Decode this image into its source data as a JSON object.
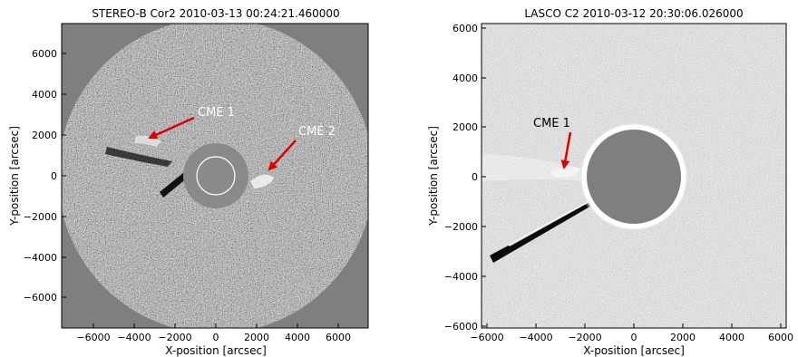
{
  "left_panel": {
    "title": "STEREO-B Cor2 2010-03-13 00:24:21.460000",
    "xlabel": "X-position [arcsec]",
    "ylabel": "Y-position [arcsec]",
    "xticks": [
      "−6000",
      "−4000",
      "−2000",
      "0",
      "2000",
      "4000",
      "6000"
    ],
    "yticks": [
      "6000",
      "4000",
      "2000",
      "0",
      "−2000",
      "−4000",
      "−6000"
    ],
    "annotations": [
      {
        "label": "CME 1",
        "color": "#ffffff",
        "arrow_color": "#dd0000"
      },
      {
        "label": "CME 2",
        "color": "#ffffff",
        "arrow_color": "#dd0000"
      }
    ]
  },
  "right_panel": {
    "title": "LASCO C2 2010-03-12 20:30:06.026000",
    "xlabel": "X-position [arcsec]",
    "ylabel": "Y-position [arcsec]",
    "xticks": [
      "−6000",
      "−4000",
      "−2000",
      "0",
      "2000",
      "4000",
      "6000"
    ],
    "yticks": [
      "6000",
      "4000",
      "2000",
      "0",
      "−2000",
      "−4000",
      "−6000"
    ],
    "annotations": [
      {
        "label": "CME 1",
        "color": "#000000",
        "arrow_color": "#dd0000"
      }
    ]
  }
}
